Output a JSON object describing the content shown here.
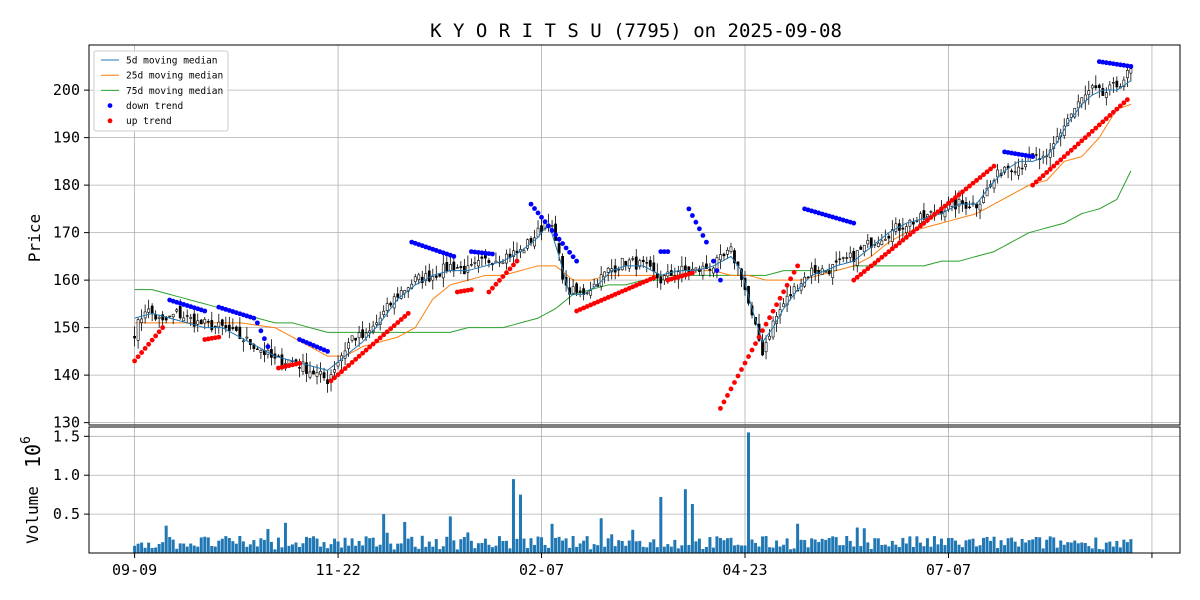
{
  "chart_data": {
    "type": "candlestick",
    "title": "K Y O R I T S U (7795) on 2025-09-08",
    "price_panel": {
      "ylabel": "Price",
      "ylim": [
        129.5,
        209.5
      ],
      "yticks": [
        130,
        140,
        150,
        160,
        170,
        180,
        190,
        200
      ],
      "grid": true,
      "legend": {
        "placement": "top-left",
        "entries": [
          {
            "key": "ma5",
            "label": " 5d moving median",
            "color": "#1f77b4",
            "marker": "line"
          },
          {
            "key": "ma25",
            "label": "25d moving median",
            "color": "#ff7f0e",
            "marker": "line"
          },
          {
            "key": "ma75",
            "label": "75d moving median",
            "color": "#2ca02c",
            "marker": "line"
          },
          {
            "key": "down",
            "label": "down trend",
            "color": "#0000ff",
            "marker": "dot"
          },
          {
            "key": "up",
            "label": "up trend",
            "color": "#ff0000",
            "marker": "dot"
          }
        ]
      },
      "close_keypoints": [
        [
          0,
          149
        ],
        [
          3,
          154
        ],
        [
          8,
          151
        ],
        [
          12,
          153
        ],
        [
          18,
          151
        ],
        [
          25,
          150
        ],
        [
          30,
          148
        ],
        [
          35,
          146
        ],
        [
          40,
          143
        ],
        [
          45,
          143
        ],
        [
          50,
          141
        ],
        [
          55,
          139
        ],
        [
          58,
          143
        ],
        [
          62,
          148
        ],
        [
          66,
          148
        ],
        [
          70,
          152
        ],
        [
          75,
          157
        ],
        [
          80,
          160
        ],
        [
          85,
          161
        ],
        [
          90,
          163
        ],
        [
          95,
          162
        ],
        [
          100,
          164
        ],
        [
          105,
          165
        ],
        [
          110,
          166
        ],
        [
          115,
          170
        ],
        [
          118,
          173
        ],
        [
          120,
          168
        ],
        [
          123,
          158
        ],
        [
          127,
          157
        ],
        [
          131,
          159
        ],
        [
          135,
          162
        ],
        [
          140,
          164
        ],
        [
          145,
          163
        ],
        [
          150,
          160
        ],
        [
          155,
          162
        ],
        [
          160,
          162
        ],
        [
          165,
          163
        ],
        [
          170,
          166
        ],
        [
          173,
          161
        ],
        [
          176,
          152
        ],
        [
          179,
          145
        ],
        [
          182,
          151
        ],
        [
          185,
          155
        ],
        [
          189,
          159
        ],
        [
          193,
          162
        ],
        [
          197,
          162
        ],
        [
          200,
          163
        ],
        [
          205,
          165
        ],
        [
          210,
          168
        ],
        [
          215,
          170
        ],
        [
          220,
          172
        ],
        [
          225,
          173
        ],
        [
          230,
          175
        ],
        [
          235,
          176
        ],
        [
          240,
          176
        ],
        [
          244,
          180
        ],
        [
          248,
          184
        ],
        [
          252,
          184
        ],
        [
          256,
          186
        ],
        [
          260,
          185
        ],
        [
          263,
          190
        ],
        [
          266,
          194
        ],
        [
          270,
          198
        ],
        [
          273,
          200
        ],
        [
          276,
          199
        ],
        [
          280,
          201
        ],
        [
          284,
          204
        ]
      ],
      "ma5_keypoints": [
        [
          0,
          152
        ],
        [
          5,
          153
        ],
        [
          10,
          152
        ],
        [
          15,
          151
        ],
        [
          20,
          150
        ],
        [
          25,
          150
        ],
        [
          30,
          148
        ],
        [
          35,
          146
        ],
        [
          40,
          144
        ],
        [
          45,
          143
        ],
        [
          50,
          142
        ],
        [
          55,
          141
        ],
        [
          60,
          144
        ],
        [
          65,
          147
        ],
        [
          70,
          151
        ],
        [
          75,
          156
        ],
        [
          80,
          159
        ],
        [
          85,
          161
        ],
        [
          90,
          162
        ],
        [
          95,
          162
        ],
        [
          100,
          163
        ],
        [
          105,
          164
        ],
        [
          110,
          166
        ],
        [
          115,
          169
        ],
        [
          118,
          172
        ],
        [
          121,
          165
        ],
        [
          124,
          157
        ],
        [
          128,
          157
        ],
        [
          132,
          159
        ],
        [
          136,
          162
        ],
        [
          140,
          163
        ],
        [
          145,
          163
        ],
        [
          150,
          161
        ],
        [
          155,
          162
        ],
        [
          160,
          162
        ],
        [
          165,
          163
        ],
        [
          170,
          165
        ],
        [
          173,
          162
        ],
        [
          176,
          154
        ],
        [
          179,
          147
        ],
        [
          182,
          150
        ],
        [
          185,
          154
        ],
        [
          189,
          158
        ],
        [
          193,
          161
        ],
        [
          197,
          162
        ],
        [
          200,
          163
        ],
        [
          205,
          164
        ],
        [
          210,
          167
        ],
        [
          215,
          170
        ],
        [
          220,
          172
        ],
        [
          225,
          173
        ],
        [
          230,
          174
        ],
        [
          235,
          176
        ],
        [
          240,
          176
        ],
        [
          244,
          180
        ],
        [
          248,
          183
        ],
        [
          252,
          185
        ],
        [
          256,
          185
        ],
        [
          260,
          186
        ],
        [
          263,
          189
        ],
        [
          266,
          193
        ],
        [
          270,
          197
        ],
        [
          273,
          199
        ],
        [
          276,
          200
        ],
        [
          280,
          200
        ],
        [
          284,
          202
        ]
      ],
      "ma25_keypoints": [
        [
          0,
          151
        ],
        [
          10,
          151
        ],
        [
          20,
          151
        ],
        [
          30,
          151
        ],
        [
          40,
          150
        ],
        [
          50,
          146
        ],
        [
          55,
          144
        ],
        [
          60,
          144
        ],
        [
          65,
          146
        ],
        [
          70,
          147
        ],
        [
          75,
          148
        ],
        [
          80,
          150
        ],
        [
          85,
          156
        ],
        [
          90,
          159
        ],
        [
          95,
          160
        ],
        [
          100,
          161
        ],
        [
          105,
          161
        ],
        [
          110,
          162
        ],
        [
          115,
          163
        ],
        [
          120,
          163
        ],
        [
          125,
          160
        ],
        [
          130,
          160
        ],
        [
          135,
          161
        ],
        [
          140,
          161
        ],
        [
          145,
          161
        ],
        [
          150,
          161
        ],
        [
          155,
          161
        ],
        [
          160,
          162
        ],
        [
          165,
          162
        ],
        [
          170,
          161
        ],
        [
          175,
          161
        ],
        [
          180,
          160
        ],
        [
          185,
          160
        ],
        [
          190,
          160
        ],
        [
          195,
          161
        ],
        [
          200,
          162
        ],
        [
          205,
          163
        ],
        [
          210,
          165
        ],
        [
          215,
          168
        ],
        [
          220,
          170
        ],
        [
          225,
          171
        ],
        [
          230,
          172
        ],
        [
          235,
          173
        ],
        [
          240,
          174
        ],
        [
          245,
          176
        ],
        [
          250,
          178
        ],
        [
          255,
          180
        ],
        [
          260,
          181
        ],
        [
          265,
          185
        ],
        [
          270,
          186
        ],
        [
          275,
          190
        ],
        [
          280,
          196
        ],
        [
          284,
          197
        ]
      ],
      "ma75_keypoints": [
        [
          0,
          158
        ],
        [
          5,
          158
        ],
        [
          10,
          157
        ],
        [
          15,
          156
        ],
        [
          20,
          155
        ],
        [
          25,
          154
        ],
        [
          30,
          153
        ],
        [
          35,
          152
        ],
        [
          40,
          151
        ],
        [
          45,
          151
        ],
        [
          50,
          150
        ],
        [
          55,
          149
        ],
        [
          60,
          149
        ],
        [
          65,
          149
        ],
        [
          70,
          149
        ],
        [
          75,
          149
        ],
        [
          80,
          149
        ],
        [
          85,
          149
        ],
        [
          90,
          149
        ],
        [
          95,
          150
        ],
        [
          100,
          150
        ],
        [
          105,
          150
        ],
        [
          110,
          151
        ],
        [
          115,
          152
        ],
        [
          120,
          154
        ],
        [
          125,
          157
        ],
        [
          130,
          158
        ],
        [
          135,
          159
        ],
        [
          140,
          159
        ],
        [
          145,
          160
        ],
        [
          150,
          160
        ],
        [
          155,
          161
        ],
        [
          160,
          161
        ],
        [
          165,
          161
        ],
        [
          170,
          161
        ],
        [
          175,
          161
        ],
        [
          180,
          161
        ],
        [
          185,
          162
        ],
        [
          190,
          162
        ],
        [
          195,
          162
        ],
        [
          200,
          162
        ],
        [
          205,
          163
        ],
        [
          210,
          163
        ],
        [
          215,
          163
        ],
        [
          220,
          163
        ],
        [
          225,
          163
        ],
        [
          230,
          164
        ],
        [
          235,
          164
        ],
        [
          240,
          165
        ],
        [
          245,
          166
        ],
        [
          250,
          168
        ],
        [
          255,
          170
        ],
        [
          260,
          171
        ],
        [
          265,
          172
        ],
        [
          270,
          174
        ],
        [
          275,
          175
        ],
        [
          280,
          177
        ],
        [
          284,
          183
        ]
      ],
      "down_trend_segments": [
        [
          [
            10,
            155.8
          ],
          [
            20,
            153.5
          ]
        ],
        [
          [
            24,
            154.3
          ],
          [
            34,
            152
          ]
        ],
        [
          [
            35,
            151
          ],
          [
            38,
            146
          ]
        ],
        [
          [
            47,
            147.5
          ],
          [
            55,
            145
          ]
        ],
        [
          [
            79,
            168
          ],
          [
            91,
            165
          ]
        ],
        [
          [
            96,
            166
          ],
          [
            102,
            165.5
          ]
        ],
        [
          [
            113,
            176
          ],
          [
            126,
            164
          ]
        ],
        [
          [
            150,
            166
          ],
          [
            152,
            166
          ]
        ],
        [
          [
            158,
            175
          ],
          [
            163,
            168
          ]
        ],
        [
          [
            165,
            164
          ],
          [
            167,
            160
          ]
        ],
        [
          [
            191,
            175
          ],
          [
            205,
            172
          ]
        ],
        [
          [
            248,
            187
          ],
          [
            256,
            186
          ]
        ],
        [
          [
            275,
            206
          ],
          [
            284,
            205
          ]
        ]
      ],
      "up_trend_segments": [
        [
          [
            0,
            143
          ],
          [
            8,
            150
          ]
        ],
        [
          [
            20,
            147.5
          ],
          [
            24,
            148
          ]
        ],
        [
          [
            41,
            141.5
          ],
          [
            47,
            142.5
          ]
        ],
        [
          [
            56,
            138.8
          ],
          [
            78,
            153
          ]
        ],
        [
          [
            92,
            157.5
          ],
          [
            96,
            158
          ]
        ],
        [
          [
            101,
            157.5
          ],
          [
            109,
            164
          ]
        ],
        [
          [
            126,
            153.5
          ],
          [
            148,
            160.5
          ]
        ],
        [
          [
            152,
            160
          ],
          [
            159,
            161.5
          ]
        ],
        [
          [
            167,
            133
          ],
          [
            189,
            163
          ]
        ],
        [
          [
            205,
            160
          ],
          [
            245,
            184
          ]
        ],
        [
          [
            256,
            180
          ],
          [
            283,
            198
          ]
        ]
      ]
    },
    "volume_panel": {
      "ylabel": "Volume",
      "scale_label": "10",
      "scale_exponent": "6",
      "ylim": [
        0,
        1.62
      ],
      "yticks": [
        0.5,
        1.0,
        1.5
      ],
      "ytick_labels": [
        "0.5",
        "1.0",
        "1.5"
      ],
      "bar_color": "#1f77b4",
      "spikes": [
        [
          108,
          0.95
        ],
        [
          110,
          0.75
        ],
        [
          150,
          0.72
        ],
        [
          157,
          0.82
        ],
        [
          159,
          0.63
        ],
        [
          175,
          1.55
        ]
      ],
      "base_level": 0.13
    },
    "x_axis": {
      "n_days": 285,
      "xlim": [
        -13,
        298
      ],
      "ticks": [
        {
          "index": 0,
          "label": "09-09"
        },
        {
          "index": 58,
          "label": "11-22"
        },
        {
          "index": 116,
          "label": "02-07"
        },
        {
          "index": 174,
          "label": "04-23"
        },
        {
          "index": 232,
          "label": "07-07"
        },
        {
          "index": 290,
          "label": ""
        }
      ]
    }
  }
}
